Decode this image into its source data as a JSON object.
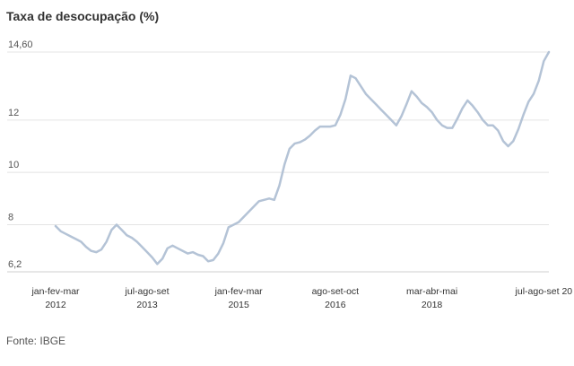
{
  "title": "Taxa de desocupação (%)",
  "source": "Fonte: IBGE",
  "chart_data": {
    "type": "line",
    "title": "Taxa de desocupação (%)",
    "xlabel": "",
    "ylabel": "",
    "ylim": [
      6.2,
      14.6
    ],
    "y_ticks": [
      {
        "value": 14.6,
        "label": "14,60"
      },
      {
        "value": 12,
        "label": "12"
      },
      {
        "value": 10,
        "label": "10"
      },
      {
        "value": 8,
        "label": "8"
      },
      {
        "value": 6.2,
        "label": "6,2"
      }
    ],
    "x_ticks": [
      {
        "index": 0,
        "period": "jan-fev-mar",
        "year": "2012"
      },
      {
        "index": 18,
        "period": "jul-ago-set",
        "year": "2013"
      },
      {
        "index": 36,
        "period": "jan-fev-mar",
        "year": "2015"
      },
      {
        "index": 55,
        "period": "ago-set-oct",
        "year": "2016"
      },
      {
        "index": 74,
        "period": "mar-abr-mai",
        "year": "2018"
      },
      {
        "index": 96,
        "period": "jul-ago-set 20",
        "year": ""
      }
    ],
    "grid": true,
    "line_color": "#b4c3d6",
    "series": [
      {
        "values": [
          7.95,
          7.75,
          7.65,
          7.55,
          7.45,
          7.35,
          7.15,
          7.0,
          6.95,
          7.05,
          7.35,
          7.8,
          8.0,
          7.8,
          7.6,
          7.5,
          7.35,
          7.15,
          6.95,
          6.75,
          6.5,
          6.7,
          7.1,
          7.2,
          7.1,
          7.0,
          6.9,
          6.95,
          6.85,
          6.8,
          6.6,
          6.65,
          6.9,
          7.3,
          7.9,
          8.0,
          8.1,
          8.3,
          8.5,
          8.7,
          8.9,
          8.95,
          9.0,
          8.95,
          9.5,
          10.3,
          10.9,
          11.1,
          11.15,
          11.25,
          11.4,
          11.6,
          11.75,
          11.75,
          11.75,
          11.8,
          12.2,
          12.8,
          13.7,
          13.6,
          13.3,
          13.0,
          12.8,
          12.6,
          12.4,
          12.2,
          12.0,
          11.8,
          12.15,
          12.6,
          13.1,
          12.9,
          12.65,
          12.5,
          12.3,
          12.0,
          11.8,
          11.7,
          11.7,
          12.05,
          12.45,
          12.75,
          12.55,
          12.3,
          12.0,
          11.8,
          11.8,
          11.6,
          11.2,
          11.0,
          11.2,
          11.65,
          12.2,
          12.7,
          13.0,
          13.5,
          14.25,
          14.6
        ]
      }
    ]
  }
}
